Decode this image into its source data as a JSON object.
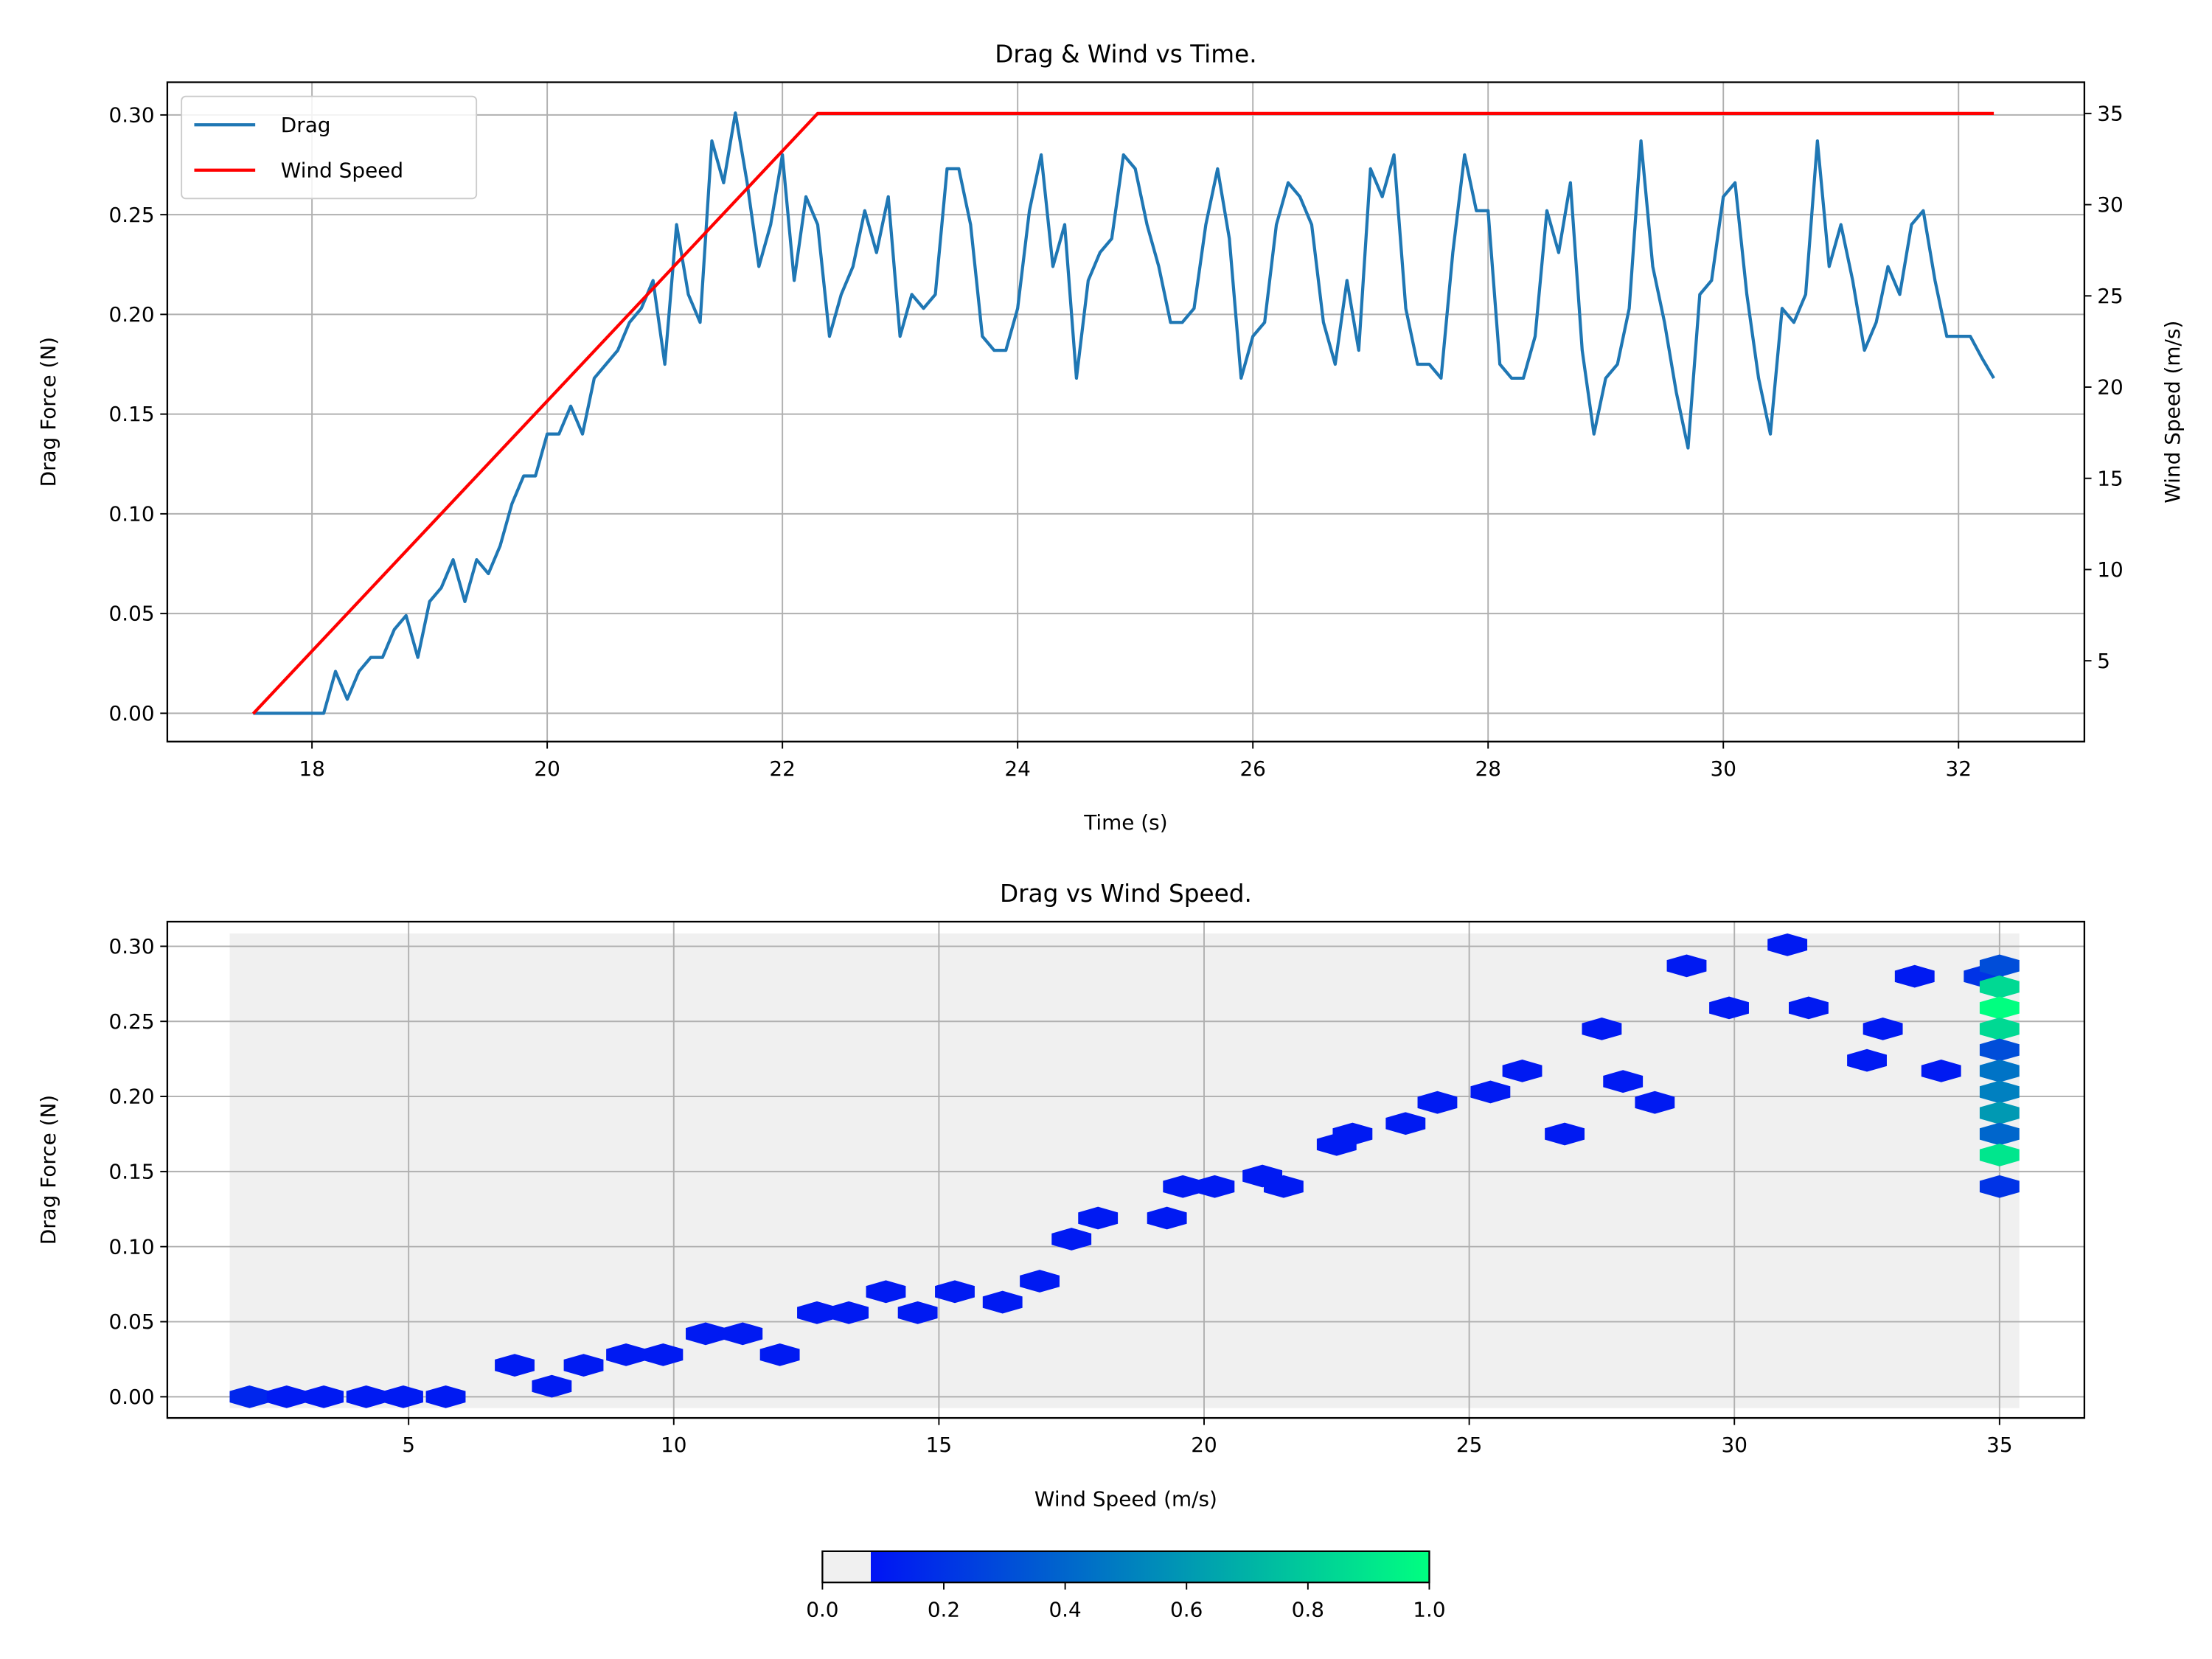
{
  "chart_data": [
    {
      "type": "line",
      "title": "Drag & Wind vs Time.",
      "x_label": "Time (s)",
      "y_label": "Drag Force (N)",
      "y2_label": "Wind Speed (m/s)",
      "x": [
        17.5,
        17.6,
        17.7,
        17.8,
        17.9,
        18.0,
        18.1,
        18.2,
        18.3,
        18.4,
        18.5,
        18.6,
        18.7,
        18.8,
        18.9,
        19.0,
        19.1,
        19.2,
        19.3,
        19.4,
        19.5,
        19.6,
        19.7,
        19.8,
        19.9,
        20.0,
        20.1,
        20.2,
        20.3,
        20.4,
        20.5,
        20.6,
        20.7,
        20.8,
        20.9,
        21.0,
        21.1,
        21.2,
        21.3,
        21.4,
        21.5,
        21.6,
        21.7,
        21.8,
        21.9,
        22.0,
        22.1,
        22.2,
        22.3,
        22.4,
        22.5,
        22.6,
        22.7,
        22.8,
        22.9,
        23.0,
        23.1,
        23.2,
        23.3,
        23.4,
        23.5,
        23.6,
        23.7,
        23.8,
        23.9,
        24.0,
        24.1,
        24.2,
        24.3,
        24.4,
        24.5,
        24.6,
        24.7,
        24.8,
        24.9,
        25.0,
        25.1,
        25.2,
        25.3,
        25.4,
        25.5,
        25.6,
        25.7,
        25.8,
        25.9,
        26.0,
        26.1,
        26.2,
        26.3,
        26.4,
        26.5,
        26.6,
        26.7,
        26.8,
        26.9,
        27.0,
        27.1,
        27.2,
        27.3,
        27.4,
        27.5,
        27.6,
        27.7,
        27.8,
        27.9,
        28.0,
        28.1,
        28.2,
        28.3,
        28.4,
        28.5,
        28.6,
        28.7,
        28.8,
        28.9,
        29.0,
        29.1,
        29.2,
        29.3,
        29.4,
        29.5,
        29.6,
        29.7,
        29.8,
        29.9,
        30.0,
        30.1,
        30.2,
        30.3,
        30.4,
        30.5,
        30.6,
        30.7,
        30.8,
        30.9,
        31.0,
        31.1,
        31.2,
        31.3,
        31.4,
        31.5,
        31.6,
        31.7,
        31.8,
        31.9,
        32.0,
        32.1,
        32.2,
        32.3
      ],
      "series": [
        {
          "name": "Drag",
          "color": "#1f77b4",
          "values": [
            0,
            0,
            0,
            0,
            0,
            0,
            0,
            0.021,
            0.007,
            0.021,
            0.028,
            0.028,
            0.042,
            0.049,
            0.028,
            0.056,
            0.063,
            0.077,
            0.056,
            0.077,
            0.07,
            0.084,
            0.105,
            0.119,
            0.119,
            0.14,
            0.14,
            0.154,
            0.14,
            0.168,
            0.175,
            0.182,
            0.196,
            0.203,
            0.217,
            0.175,
            0.245,
            0.21,
            0.196,
            0.287,
            0.266,
            0.301,
            0.266,
            0.224,
            0.245,
            0.28,
            0.217,
            0.259,
            0.245,
            0.189,
            0.21,
            0.224,
            0.252,
            0.231,
            0.259,
            0.189,
            0.21,
            0.203,
            0.21,
            0.273,
            0.273,
            0.245,
            0.189,
            0.182,
            0.182,
            0.203,
            0.252,
            0.28,
            0.224,
            0.245,
            0.168,
            0.217,
            0.231,
            0.238,
            0.28,
            0.273,
            0.245,
            0.224,
            0.196,
            0.196,
            0.203,
            0.245,
            0.273,
            0.238,
            0.168,
            0.189,
            0.196,
            0.245,
            0.266,
            0.259,
            0.245,
            0.196,
            0.175,
            0.217,
            0.182,
            0.273,
            0.259,
            0.28,
            0.203,
            0.175,
            0.175,
            0.168,
            0.231,
            0.28,
            0.252,
            0.252,
            0.175,
            0.168,
            0.168,
            0.189,
            0.252,
            0.231,
            0.266,
            0.182,
            0.14,
            0.168,
            0.175,
            0.203,
            0.287,
            0.224,
            0.196,
            0.161,
            0.133,
            0.21,
            0.217,
            0.259,
            0.266,
            0.21,
            0.168,
            0.14,
            0.203,
            0.196,
            0.21,
            0.287,
            0.224,
            0.245,
            0.217,
            0.182,
            0.196,
            0.224,
            0.21,
            0.245,
            0.252,
            0.217,
            0.189,
            0.189,
            0.189,
            0.178,
            0.168
          ]
        },
        {
          "name": "Wind Speed",
          "color": "#ff0000",
          "axis": "y2",
          "x": [
            17.5,
            22.3,
            32.3
          ],
          "values": [
            2.1,
            35,
            35
          ]
        }
      ],
      "xlim": [
        16.77,
        33.07
      ],
      "ylim": [
        -0.0142,
        0.3164
      ],
      "y2lim": [
        0.57,
        36.71
      ],
      "xticks": [
        18,
        20,
        22,
        24,
        26,
        28,
        30,
        32
      ],
      "yticks": [
        {
          "value": 0,
          "label": "0.00"
        },
        {
          "value": 0.05,
          "label": "0.05"
        },
        {
          "value": 0.1,
          "label": "0.10"
        },
        {
          "value": 0.15,
          "label": "0.15"
        },
        {
          "value": 0.2,
          "label": "0.20"
        },
        {
          "value": 0.25,
          "label": "0.25"
        },
        {
          "value": 0.3,
          "label": "0.30"
        }
      ],
      "y2ticks": [
        5,
        10,
        15,
        20,
        25,
        30,
        35
      ],
      "grid": true,
      "legend": "upper left"
    },
    {
      "type": "hexbin",
      "title": "Drag vs Wind Speed.",
      "x_label": "Wind Speed (m/s)",
      "y_label": "Drag Force (N)",
      "cells": {
        "x": [
          2.0,
          2.7,
          3.4,
          4.2,
          4.9,
          5.7,
          7.0,
          7.7,
          8.3,
          9.1,
          9.8,
          10.6,
          11.3,
          12.0,
          12.7,
          13.3,
          14.0,
          14.6,
          15.3,
          16.2,
          16.9,
          17.5,
          18.0,
          19.3,
          19.6,
          20.2,
          21.1,
          21.5,
          22.5,
          22.8,
          23.8,
          24.4,
          25.4,
          26.0,
          26.8,
          27.5,
          27.9,
          28.5,
          29.1,
          29.9,
          31.0,
          31.4,
          32.5,
          32.8,
          33.4,
          33.9,
          34.7,
          35,
          35,
          35,
          35,
          35,
          35,
          35,
          35,
          35,
          35,
          35
        ],
        "y": [
          0,
          0,
          0,
          0,
          0,
          0,
          0.021,
          0.007,
          0.021,
          0.028,
          0.028,
          0.042,
          0.042,
          0.028,
          0.056,
          0.056,
          0.07,
          0.056,
          0.07,
          0.063,
          0.077,
          0.105,
          0.119,
          0.119,
          0.14,
          0.14,
          0.147,
          0.14,
          0.168,
          0.175,
          0.182,
          0.196,
          0.203,
          0.217,
          0.175,
          0.245,
          0.21,
          0.196,
          0.287,
          0.259,
          0.301,
          0.259,
          0.224,
          0.245,
          0.28,
          0.217,
          0.28,
          0.287,
          0.273,
          0.259,
          0.245,
          0.231,
          0.217,
          0.203,
          0.189,
          0.175,
          0.161,
          0.14
        ],
        "values": [
          0.15,
          0.1,
          0.1,
          0.1,
          0.1,
          0.1,
          0.1,
          0.1,
          0.1,
          0.1,
          0.1,
          0.1,
          0.1,
          0.1,
          0.1,
          0.1,
          0.1,
          0.1,
          0.1,
          0.1,
          0.1,
          0.1,
          0.1,
          0.1,
          0.1,
          0.1,
          0.1,
          0.1,
          0.1,
          0.1,
          0.1,
          0.1,
          0.1,
          0.1,
          0.1,
          0.1,
          0.1,
          0.1,
          0.1,
          0.1,
          0.1,
          0.1,
          0.1,
          0.1,
          0.1,
          0.1,
          0.2,
          0.3,
          0.85,
          1.0,
          0.85,
          0.3,
          0.45,
          0.5,
          0.6,
          0.4,
          0.9,
          0.2
        ]
      },
      "xlim": [
        0.45,
        36.6
      ],
      "ylim": [
        -0.0141,
        0.3164
      ],
      "xticks": [
        5,
        10,
        15,
        20,
        25,
        30,
        35
      ],
      "yticks": [
        {
          "value": 0,
          "label": "0.00"
        },
        {
          "value": 0.05,
          "label": "0.05"
        },
        {
          "value": 0.1,
          "label": "0.10"
        },
        {
          "value": 0.15,
          "label": "0.15"
        },
        {
          "value": 0.2,
          "label": "0.20"
        },
        {
          "value": 0.25,
          "label": "0.25"
        },
        {
          "value": 0.3,
          "label": "0.30"
        }
      ],
      "grid": true,
      "cmap": [
        "#0000ff",
        "#00ff80"
      ],
      "empty_color": "#f0f0f0",
      "empty_until": 0.08,
      "colorbar": {
        "lim": [
          0,
          1
        ],
        "ticks": [
          {
            "value": 0,
            "label": "0.0"
          },
          0.2,
          0.4,
          0.6,
          0.8,
          {
            "value": 1,
            "label": "1.0"
          }
        ]
      }
    }
  ]
}
